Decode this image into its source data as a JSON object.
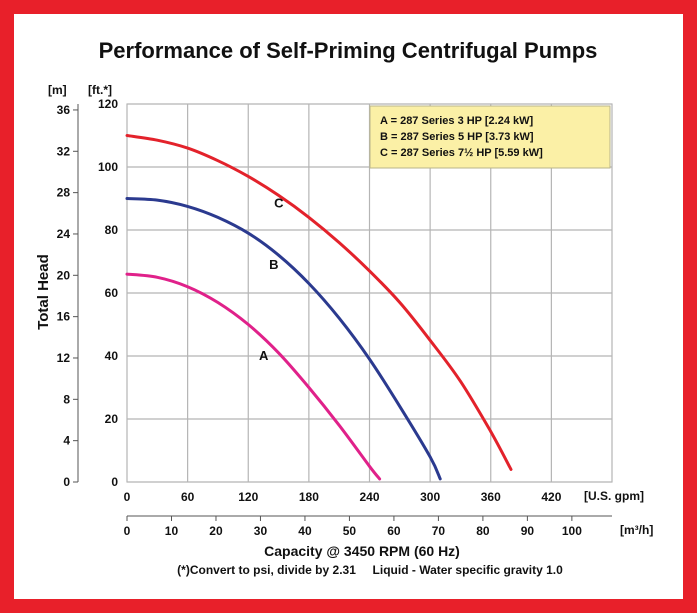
{
  "chart_data": {
    "type": "line",
    "title": "Performance of Self-Priming Centrifugal Pumps",
    "x_axis_primary": {
      "unit": "[U.S. gpm]",
      "range": [
        0,
        480
      ],
      "ticks": [
        "0",
        "60",
        "120",
        "180",
        "240",
        "300",
        "360",
        "420"
      ]
    },
    "x_axis_secondary": {
      "unit": "[m³/h]",
      "ticks": [
        "0",
        "10",
        "20",
        "30",
        "40",
        "50",
        "60",
        "70",
        "80",
        "90",
        "100"
      ]
    },
    "xlabel": "Capacity @ 3450 RPM (60 Hz)",
    "y_axis_primary": {
      "unit": "[ft.*]",
      "range": [
        0,
        120
      ],
      "ticks": [
        "0",
        "20",
        "40",
        "60",
        "80",
        "100",
        "120"
      ]
    },
    "y_axis_secondary": {
      "unit": "[m]",
      "ticks": [
        "0",
        "4",
        "8",
        "12",
        "16",
        "20",
        "24",
        "28",
        "32",
        "36"
      ]
    },
    "ylabel": "Total Head",
    "footnote": "(*)Convert to psi, divide by 2.31     Liquid - Water specific gravity 1.0",
    "legend": {
      "placement": "top-right",
      "entries": [
        "A = 287 Series 3 HP [2.24 kW]",
        "B = 287 Series 5 HP [3.73 kW]",
        "C = 287 Series 7½ HP [5.59 kW]"
      ]
    },
    "grid": true,
    "series": [
      {
        "name": "A",
        "color": "#e0218a",
        "x": [
          0,
          30,
          60,
          90,
          120,
          150,
          180,
          210,
          240,
          250
        ],
        "y": [
          66,
          65,
          62,
          57,
          50,
          41,
          30,
          18,
          5,
          1
        ]
      },
      {
        "name": "B",
        "color": "#2b3a8f",
        "x": [
          0,
          30,
          60,
          90,
          120,
          150,
          180,
          210,
          240,
          270,
          300,
          310
        ],
        "y": [
          90,
          89.5,
          87.5,
          84,
          79,
          72,
          63,
          52,
          39,
          24,
          8,
          1
        ]
      },
      {
        "name": "C",
        "color": "#e3222b",
        "x": [
          0,
          30,
          60,
          90,
          120,
          150,
          180,
          210,
          240,
          270,
          300,
          330,
          360,
          380
        ],
        "y": [
          110,
          108.5,
          106,
          102,
          97,
          91,
          84,
          76,
          67,
          57,
          45,
          32,
          16,
          4
        ]
      }
    ]
  }
}
